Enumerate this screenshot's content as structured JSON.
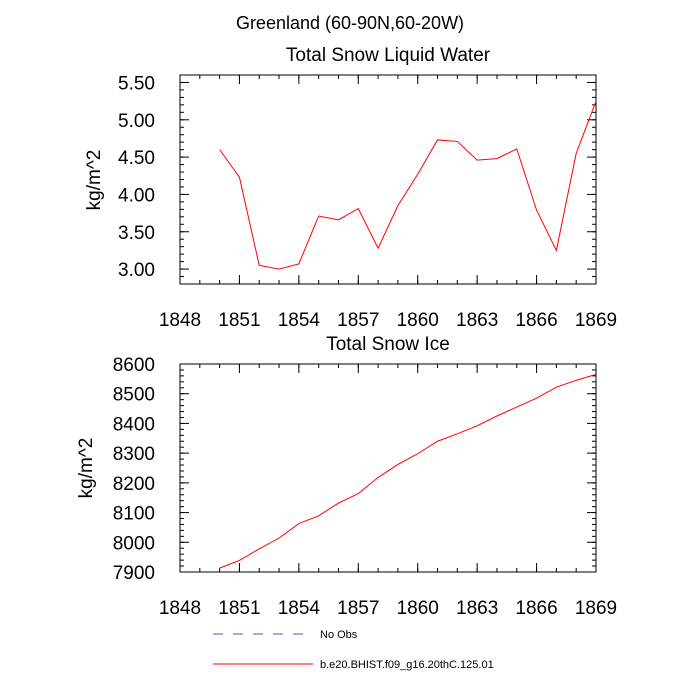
{
  "figure": {
    "suptitle": "Greenland (60-90N,60-20W)"
  },
  "chart_data": [
    {
      "type": "line",
      "title": "Total Snow Liquid Water",
      "xlabel": "",
      "ylabel": "kg/m^2",
      "xlim": [
        1848,
        1869
      ],
      "ylim": [
        2.8,
        5.6
      ],
      "xticks": [
        1848,
        1851,
        1854,
        1857,
        1860,
        1863,
        1866,
        1869
      ],
      "xtick_labels": [
        "1848",
        "1851",
        "1854",
        "1857",
        "1860",
        "1863",
        "1866",
        "1869"
      ],
      "yticks": [
        3.0,
        3.5,
        4.0,
        4.5,
        5.0,
        5.5
      ],
      "ytick_labels": [
        "3.00",
        "3.50",
        "4.00",
        "4.50",
        "5.00",
        "5.50"
      ],
      "grid": false,
      "series": [
        {
          "color": "#ff0000",
          "x": [
            1850,
            1851,
            1852,
            1853,
            1854,
            1855,
            1856,
            1857,
            1858,
            1859,
            1860,
            1861,
            1862,
            1863,
            1864,
            1865,
            1866,
            1867,
            1868,
            1869
          ],
          "values": [
            4.6,
            4.23,
            3.05,
            3.0,
            3.07,
            3.71,
            3.66,
            3.81,
            3.28,
            3.85,
            4.27,
            4.73,
            4.71,
            4.46,
            4.48,
            4.61,
            3.79,
            3.25,
            4.55,
            5.25
          ]
        }
      ]
    },
    {
      "type": "line",
      "title": "Total Snow Ice",
      "xlabel": "",
      "ylabel": "kg/m^2",
      "xlim": [
        1848,
        1869
      ],
      "ylim": [
        7900,
        8600
      ],
      "xticks": [
        1848,
        1851,
        1854,
        1857,
        1860,
        1863,
        1866,
        1869
      ],
      "xtick_labels": [
        "1848",
        "1851",
        "1854",
        "1857",
        "1860",
        "1863",
        "1866",
        "1869"
      ],
      "yticks": [
        7900,
        8000,
        8100,
        8200,
        8300,
        8400,
        8500,
        8600
      ],
      "ytick_labels": [
        "7900",
        "8000",
        "8100",
        "8200",
        "8300",
        "8400",
        "8500",
        "8600"
      ],
      "grid": false,
      "series": [
        {
          "color": "#ff0000",
          "x": [
            1850,
            1851,
            1852,
            1853,
            1854,
            1855,
            1856,
            1857,
            1858,
            1859,
            1860,
            1861,
            1862,
            1863,
            1864,
            1865,
            1866,
            1867,
            1868,
            1869
          ],
          "values": [
            7913,
            7939,
            7978,
            8014,
            8063,
            8089,
            8132,
            8164,
            8218,
            8262,
            8298,
            8340,
            8365,
            8392,
            8425,
            8455,
            8485,
            8522,
            8545,
            8565
          ]
        }
      ]
    }
  ],
  "legend": {
    "placement": "bottom",
    "items": [
      {
        "label": "No Obs",
        "color": "#5555aa",
        "style": "dashed"
      },
      {
        "label": "b.e20.BHIST.f09_g16.20thC.125.01",
        "color": "#ff0000",
        "style": "solid"
      }
    ]
  }
}
